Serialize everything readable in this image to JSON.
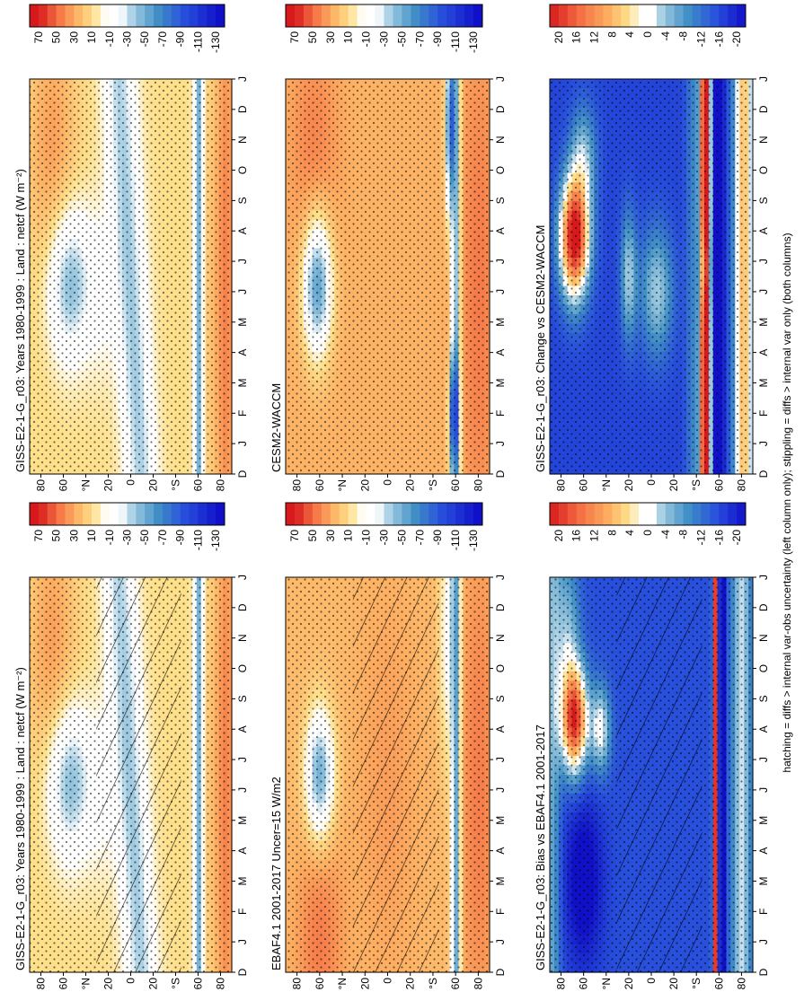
{
  "figure": {
    "footnote": "hatching = diffs > internal var-obs uncertainty (left column only); stippling = diffs > internal var only (both columns)",
    "orientation": "rotated 90 degrees counter-clockwise"
  },
  "colors": {
    "hatch": "#000000",
    "stipple": "#000000"
  },
  "chart_data": [
    {
      "id": "p1",
      "type": "heatmap",
      "title": "GISS-E2-1-G_r03: Years 1980-1999 : Land : netcf (W m⁻²)",
      "x_ticks": [
        "D",
        "J",
        "F",
        "M",
        "A",
        "M",
        "J",
        "J",
        "A",
        "S",
        "O",
        "N",
        "D",
        "J"
      ],
      "y_ticks": [
        "80",
        "60",
        "°N",
        "20",
        "0",
        "20",
        "°S",
        "60",
        "80"
      ],
      "y_range": [
        -90,
        90
      ],
      "variable": "netcf",
      "colorbar_labels": [
        "70",
        "50",
        "30",
        "10",
        "-10",
        "-30",
        "-50",
        "-70",
        "-90",
        "-110",
        "-130"
      ],
      "colorbar_levels": [
        80,
        70,
        60,
        50,
        40,
        30,
        20,
        10,
        0,
        -10,
        -20,
        -30,
        -40,
        -50,
        -60,
        -70,
        -80,
        -90,
        -100,
        -110,
        -120,
        -130,
        -140
      ],
      "features": [
        "NH summer minimum near 60N (about -50) in Jun-Jul",
        "tropical band -30 to -60",
        "sea-ice edge near 60S",
        "polar values +10 to +40"
      ],
      "overlay": "stippling and hatching"
    },
    {
      "id": "p2",
      "type": "heatmap",
      "title": "EBAF4.1 2001-2017 Uncer=15 W/m2",
      "x_ticks": [
        "D",
        "J",
        "F",
        "M",
        "A",
        "M",
        "J",
        "J",
        "A",
        "S",
        "O",
        "N",
        "D",
        "J"
      ],
      "y_ticks": [
        "80",
        "60",
        "°N",
        "20",
        "0",
        "20",
        "°S",
        "60",
        "80"
      ],
      "y_range": [
        -90,
        90
      ],
      "variable": "netcf",
      "colorbar_labels": [
        "70",
        "50",
        "30",
        "10",
        "-10",
        "-30",
        "-50",
        "-70",
        "-90",
        "-110",
        "-130"
      ],
      "features": [
        "NH summer minimum near 60N",
        "weak tropical signal",
        "sea-ice edge near 60S"
      ],
      "overlay": "stippling and hatching"
    },
    {
      "id": "p3",
      "type": "heatmap",
      "title": "GISS-E2-1-G_r03: Bias vs EBAF4.1 2001-2017",
      "x_ticks": [
        "D",
        "J",
        "F",
        "M",
        "A",
        "M",
        "J",
        "J",
        "A",
        "S",
        "O",
        "N",
        "D",
        "J"
      ],
      "y_ticks": [
        "80",
        "60",
        "°N",
        "20",
        "0",
        "20",
        "°S",
        "60",
        "80"
      ],
      "y_range": [
        -90,
        90
      ],
      "variable": "netcf bias",
      "colorbar_labels": [
        "20",
        "16",
        "12",
        "8",
        "4",
        "0",
        "-4",
        "-8",
        "-12",
        "-16",
        "-20"
      ],
      "features": [
        "positive bias up to +20 at 60-70N in Aug-Oct",
        "negative bias about -20 in tropics",
        "narrow positive/negative band near 60S"
      ],
      "overlay": "stippling and hatching"
    },
    {
      "id": "p4",
      "type": "heatmap",
      "title": "GISS-E2-1-G_r03: Years 1980-1999 : Land : netcf (W m⁻²)",
      "x_ticks": [
        "D",
        "J",
        "F",
        "M",
        "A",
        "M",
        "J",
        "J",
        "A",
        "S",
        "O",
        "N",
        "D",
        "J"
      ],
      "y_ticks": [
        "80",
        "60",
        "°N",
        "20",
        "0",
        "20",
        "°S",
        "60",
        "80"
      ],
      "y_range": [
        -90,
        90
      ],
      "variable": "netcf",
      "colorbar_labels": [
        "70",
        "50",
        "30",
        "10",
        "-10",
        "-30",
        "-50",
        "-70",
        "-90",
        "-110",
        "-130"
      ],
      "features": [
        "NH summer minimum near 60N",
        "tropical band -30 to -60"
      ],
      "overlay": "stippling"
    },
    {
      "id": "p5",
      "type": "heatmap",
      "title": "CESM2-WACCM",
      "x_ticks": [
        "D",
        "J",
        "F",
        "M",
        "A",
        "M",
        "J",
        "J",
        "A",
        "S",
        "O",
        "N",
        "D",
        "J"
      ],
      "y_ticks": [
        "80",
        "60",
        "°N",
        "20",
        "0",
        "20",
        "°S",
        "60",
        "80"
      ],
      "y_range": [
        -90,
        90
      ],
      "variable": "netcf",
      "colorbar_labels": [
        "70",
        "50",
        "30",
        "10",
        "-10",
        "-30",
        "-50",
        "-70",
        "-90",
        "-110",
        "-130"
      ],
      "features": [
        "NH summer minimum near 60N (about -60)",
        "weak tropics",
        "strong negative band near 55S"
      ],
      "overlay": "stippling"
    },
    {
      "id": "p6",
      "type": "heatmap",
      "title": "GISS-E2-1-G_r03: Change vs CESM2-WACCM",
      "x_ticks": [
        "D",
        "J",
        "F",
        "M",
        "A",
        "M",
        "J",
        "J",
        "A",
        "S",
        "O",
        "N",
        "D",
        "J"
      ],
      "y_ticks": [
        "80",
        "60",
        "°N",
        "20",
        "0",
        "20",
        "°S",
        "60",
        "80"
      ],
      "y_range": [
        -90,
        90
      ],
      "variable": "netcf difference",
      "colorbar_labels": [
        "20",
        "16",
        "12",
        "8",
        "4",
        "0",
        "-4",
        "-8",
        "-12",
        "-16",
        "-20"
      ],
      "features": [
        "positive up to +20 at 60-75N in Jun-Sep",
        "negative -12 to -20 widely",
        "strong positive near 45-50S",
        "negative near 60S"
      ],
      "overlay": "stippling"
    }
  ]
}
